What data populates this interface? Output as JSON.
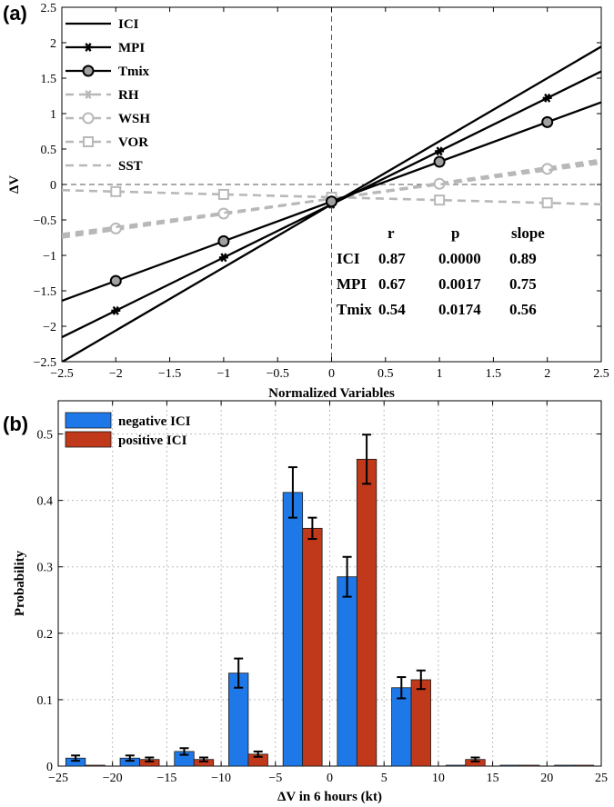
{
  "chart_data": [
    {
      "panel_label": "(a)",
      "type": "line",
      "xlabel": "Normalized Variables",
      "ylabel": "ΔV",
      "xlim": [
        -2.5,
        2.5
      ],
      "ylim": [
        -2.5,
        2.5
      ],
      "x_ticks": [
        "−2.5",
        "−2",
        "−1.5",
        "−1",
        "−0.5",
        "0",
        "0.5",
        "1",
        "1.5",
        "2",
        "2.5"
      ],
      "y_ticks": [
        "−2.5",
        "−2",
        "−1.5",
        "−1",
        "−0.5",
        "0",
        "0.5",
        "1",
        "1.5",
        "2",
        "2.5"
      ],
      "points_x": [
        -2,
        -1,
        0,
        1,
        2
      ],
      "series": [
        {
          "name": "ICI",
          "color": "#000000",
          "dash": false,
          "marker": "none",
          "slope": 0.89,
          "intercept": -0.28
        },
        {
          "name": "MPI",
          "color": "#000000",
          "dash": false,
          "marker": "star",
          "slope": 0.75,
          "intercept": -0.28
        },
        {
          "name": "Tmix",
          "color": "#000000",
          "dash": false,
          "marker": "circle",
          "slope": 0.56,
          "intercept": -0.24
        },
        {
          "name": "RH",
          "color": "#b8b8b8",
          "dash": true,
          "marker": "star",
          "slope": 0.22,
          "intercept": -0.2
        },
        {
          "name": "WSH",
          "color": "#b8b8b8",
          "dash": true,
          "marker": "circle",
          "slope": 0.21,
          "intercept": -0.2
        },
        {
          "name": "VOR",
          "color": "#b8b8b8",
          "dash": true,
          "marker": "square",
          "slope": -0.04,
          "intercept": -0.18
        },
        {
          "name": "SST",
          "color": "#b8b8b8",
          "dash": true,
          "marker": "none",
          "slope": 0.2,
          "intercept": -0.2
        }
      ],
      "stats_table": {
        "headers": [
          "r",
          "p",
          "slope"
        ],
        "rows": [
          {
            "name": "ICI",
            "r": "0.87",
            "p": "0.0000",
            "slope": "0.89"
          },
          {
            "name": "MPI",
            "r": "0.67",
            "p": "0.0017",
            "slope": "0.75"
          },
          {
            "name": "Tmix",
            "r": "0.54",
            "p": "0.0174",
            "slope": "0.56"
          }
        ]
      }
    },
    {
      "panel_label": "(b)",
      "type": "bar",
      "xlabel": "ΔV in 6 hours (kt)",
      "ylabel": "Probability",
      "xlim": [
        -25,
        25
      ],
      "ylim": [
        0,
        0.55
      ],
      "x_ticks": [
        "−25",
        "−20",
        "−15",
        "−10",
        "−5",
        "0",
        "5",
        "10",
        "15",
        "20",
        "25"
      ],
      "y_ticks": [
        "0",
        "0.1",
        "0.2",
        "0.3",
        "0.4",
        "0.5"
      ],
      "bin_centers": [
        -22.5,
        -17.5,
        -12.5,
        -7.5,
        -2.5,
        2.5,
        7.5,
        12.5,
        17.5,
        22.5
      ],
      "series": [
        {
          "name": "negative ICI",
          "color": "#1f78e8",
          "values": [
            0.012,
            0.012,
            0.022,
            0.14,
            0.412,
            0.285,
            0.118,
            0.0,
            0.0,
            0.0
          ],
          "errors": [
            0.004,
            0.004,
            0.005,
            0.022,
            0.038,
            0.03,
            0.016,
            0,
            0,
            0
          ]
        },
        {
          "name": "positive ICI",
          "color": "#c0391b",
          "values": [
            0.0,
            0.01,
            0.01,
            0.018,
            0.358,
            0.462,
            0.13,
            0.01,
            0.0,
            0.0
          ],
          "errors": [
            0,
            0.003,
            0.003,
            0.004,
            0.016,
            0.037,
            0.014,
            0.003,
            0,
            0
          ]
        }
      ]
    }
  ]
}
